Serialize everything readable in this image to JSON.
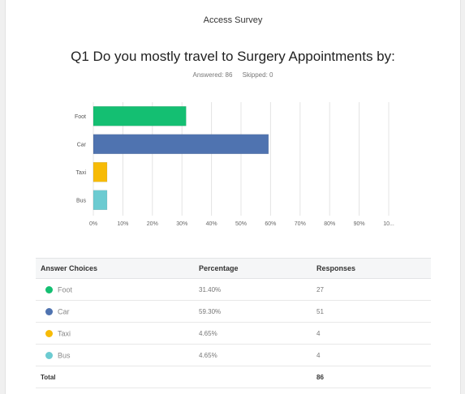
{
  "survey": {
    "title": "Access Survey"
  },
  "question": {
    "text": "Q1 Do you mostly travel to Surgery Appointments by:",
    "answered": "Answered: 86",
    "skipped": "Skipped: 0"
  },
  "chart_data": {
    "type": "bar",
    "orientation": "horizontal",
    "categories": [
      "Foot",
      "Car",
      "Taxi",
      "Bus"
    ],
    "values": [
      31.4,
      59.3,
      4.65,
      4.65
    ],
    "colors": [
      "#14bf72",
      "#4f73b0",
      "#f7bb06",
      "#6ccbd1"
    ],
    "xlim": [
      0,
      100
    ],
    "xticks": [
      "0%",
      "10%",
      "20%",
      "30%",
      "40%",
      "50%",
      "60%",
      "70%",
      "80%",
      "90%",
      "10..."
    ],
    "grid": true,
    "title": "",
    "xlabel": "",
    "ylabel": ""
  },
  "table": {
    "headers": [
      "Answer Choices",
      "Percentage",
      "Responses"
    ],
    "rows": [
      {
        "choice": "Foot",
        "percentage": "31.40%",
        "responses": "27",
        "color": "#14bf72"
      },
      {
        "choice": "Car",
        "percentage": "59.30%",
        "responses": "51",
        "color": "#4f73b0"
      },
      {
        "choice": "Taxi",
        "percentage": "4.65%",
        "responses": "4",
        "color": "#f7bb06"
      },
      {
        "choice": "Bus",
        "percentage": "4.65%",
        "responses": "4",
        "color": "#6ccbd1"
      }
    ],
    "total_label": "Total",
    "total_value": "86"
  }
}
